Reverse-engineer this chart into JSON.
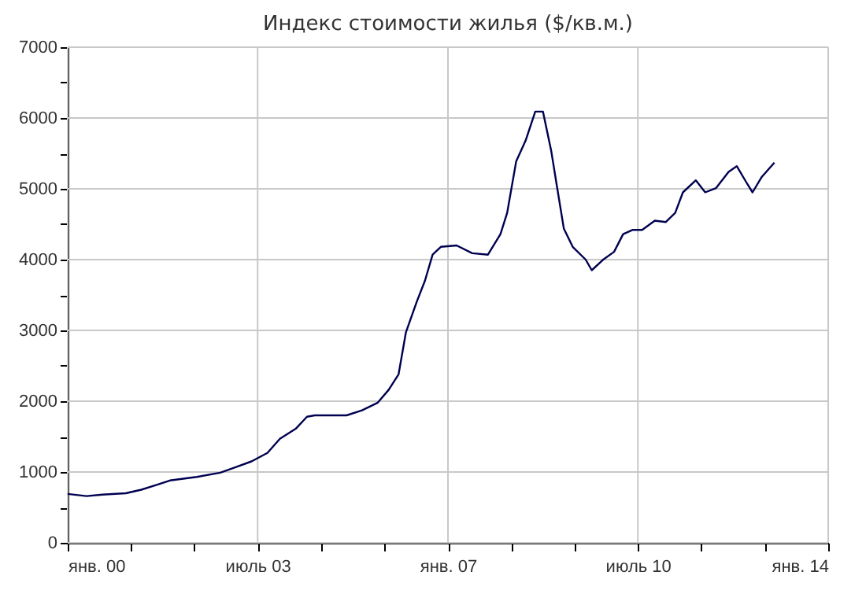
{
  "chart_data": {
    "type": "line",
    "title": "Индекс стоимости жилья ($/кв.м.)",
    "x": [
      "2000-01-01",
      "2000-05-07",
      "2000-08-21",
      "2001-01-26",
      "2001-05-10",
      "2001-08-25",
      "2001-11-18",
      "2002-05-18",
      "2002-10-23",
      "2003-02-07",
      "2003-05-21",
      "2003-09-05",
      "2003-11-28",
      "2004-03-13",
      "2004-05-28",
      "2004-07-19",
      "2005-02-18",
      "2005-06-02",
      "2005-09-16",
      "2005-11-28",
      "2006-02-03",
      "2006-03-24",
      "2006-06-06",
      "2006-07-30",
      "2006-09-20",
      "2006-11-14",
      "2007-02-28",
      "2007-06-13",
      "2007-09-27",
      "2007-12-20",
      "2008-02-03",
      "2008-04-04",
      "2008-06-06",
      "2008-08-10",
      "2008-10-01",
      "2008-11-25",
      "2009-01-04",
      "2009-02-18",
      "2009-04-19",
      "2009-07-15",
      "2009-08-25",
      "2009-11-10",
      "2010-01-22",
      "2010-03-24",
      "2010-05-28",
      "2010-07-30",
      "2010-10-23",
      "2011-01-04",
      "2011-03-09",
      "2011-04-30",
      "2011-07-26",
      "2011-09-27",
      "2011-12-09",
      "2012-03-02",
      "2012-04-26",
      "2012-06-27",
      "2012-08-10",
      "2012-10-12",
      "2013-01-04"
    ],
    "series": [
      {
        "color": "#000050",
        "values": [
          690,
          660,
          680,
          700,
          750,
          820,
          880,
          930,
          990,
          1070,
          1150,
          1270,
          1470,
          1610,
          1780,
          1800,
          1800,
          1870,
          1980,
          2160,
          2380,
          2970,
          3410,
          3700,
          4070,
          4180,
          4200,
          4090,
          4070,
          4360,
          4660,
          5390,
          5680,
          6090,
          6090,
          5540,
          5020,
          4440,
          4180,
          4000,
          3850,
          4000,
          4110,
          4360,
          4420,
          4420,
          4550,
          4530,
          4660,
          4950,
          5120,
          4950,
          5010,
          5240,
          5320,
          5100,
          4950,
          5170,
          5370
        ]
      }
    ],
    "xlim": [
      "2000-01-01",
      "2014-01-01"
    ],
    "xticks": [
      {
        "value": "2000-01",
        "label": "янв. 00"
      },
      {
        "value": "2001-03",
        "label": null
      },
      {
        "value": "2002-05",
        "label": null
      },
      {
        "value": "2003-07",
        "label": "июль 03"
      },
      {
        "value": "2004-09",
        "label": null
      },
      {
        "value": "2005-11",
        "label": null
      },
      {
        "value": "2007-01",
        "label": "янв. 07"
      },
      {
        "value": "2008-03",
        "label": null
      },
      {
        "value": "2009-05",
        "label": null
      },
      {
        "value": "2010-07",
        "label": "июль 10"
      },
      {
        "value": "2011-09",
        "label": null
      },
      {
        "value": "2012-11",
        "label": null
      },
      {
        "value": "2014-01",
        "label": "янв. 14"
      }
    ],
    "ylim": [
      0,
      7000
    ],
    "yticks": [
      0,
      {
        "value": 500,
        "label": null
      },
      1000,
      {
        "value": 1500,
        "label": null
      },
      2000,
      {
        "value": 2500,
        "label": null
      },
      3000,
      {
        "value": 3500,
        "label": null
      },
      4000,
      {
        "value": 4500,
        "label": null
      },
      5000,
      {
        "value": 5500,
        "label": null
      },
      6000,
      {
        "value": 6500,
        "label": null
      },
      7000
    ],
    "grid": true
  }
}
